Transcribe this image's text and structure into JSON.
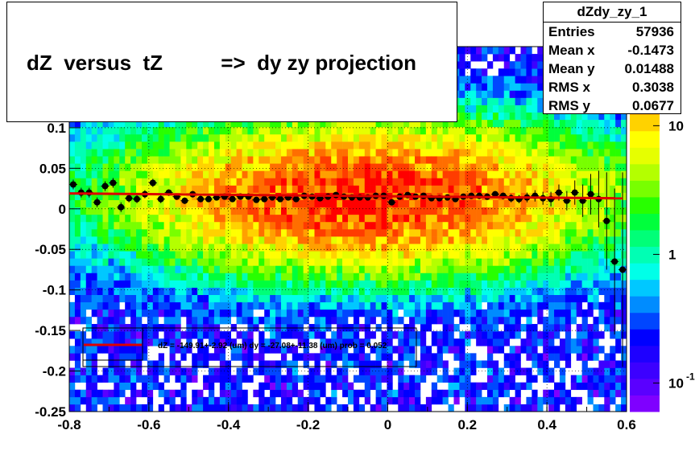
{
  "title": {
    "text": "dZ  versus  tZ          =>  dy zy projection"
  },
  "stats": {
    "name": "dZdy_zy_1",
    "rows": [
      {
        "label": "Entries",
        "value": "57936"
      },
      {
        "label": "Mean x",
        "value": "-0.1473"
      },
      {
        "label": "Mean y",
        "value": "0.01488"
      },
      {
        "label": "RMS x",
        "value": "0.3038"
      },
      {
        "label": "RMS y",
        "value": "0.0677"
      }
    ]
  },
  "legend": {
    "fit_text": "dZ = -149.91+-2.92 (um) dy = -27.08+-11.38 (um) prob = 0.052"
  },
  "colors": {
    "fit_line": "#dd0000",
    "points": "#000000",
    "palette": [
      "#7f00ff",
      "#5a00ff",
      "#3c00ff",
      "#1e00ff",
      "#0000ff",
      "#0046ff",
      "#008cff",
      "#00c8ff",
      "#00ffe8",
      "#00ffb4",
      "#00ff78",
      "#00ff3c",
      "#28ff00",
      "#78ff00",
      "#b4ff00",
      "#e6ff00",
      "#ffff00",
      "#ffd200",
      "#ffa000",
      "#ff6e00",
      "#ff3c00",
      "#ff0000"
    ]
  },
  "chart_data": {
    "type": "heatmap",
    "xlim": [
      -0.8,
      0.6
    ],
    "ylim": [
      -0.25,
      0.2
    ],
    "x_ticks": [
      "-0.8",
      "-0.6",
      "-0.4",
      "-0.2",
      "0",
      "0.2",
      "0.4",
      "0.6"
    ],
    "x_tick_values": [
      -0.8,
      -0.6,
      -0.4,
      -0.2,
      0,
      0.2,
      0.4,
      0.6
    ],
    "y_ticks": [
      "-0.25",
      "-0.2",
      "-0.15",
      "-0.1",
      "-0.05",
      "0",
      "0.05",
      "0.1"
    ],
    "y_tick_values": [
      -0.25,
      -0.2,
      -0.15,
      -0.1,
      -0.05,
      0,
      0.05,
      0.1
    ],
    "colorbar_ticks": [
      "10",
      "1"
    ],
    "colorbar_tick_values": [
      10,
      1
    ],
    "colorbar_ticks_exp": [
      {
        "base": "10",
        "exp": "-1",
        "value": 0.1
      }
    ],
    "colorbar_range": [
      0.06,
      40
    ],
    "grid": true,
    "profile": {
      "x": [
        -0.79,
        -0.77,
        -0.75,
        -0.73,
        -0.71,
        -0.69,
        -0.67,
        -0.65,
        -0.63,
        -0.61,
        -0.59,
        -0.57,
        -0.55,
        -0.53,
        -0.51,
        -0.49,
        -0.47,
        -0.45,
        -0.43,
        -0.41,
        -0.39,
        -0.37,
        -0.35,
        -0.33,
        -0.31,
        -0.29,
        -0.27,
        -0.25,
        -0.23,
        -0.21,
        -0.19,
        -0.17,
        -0.15,
        -0.13,
        -0.11,
        -0.09,
        -0.07,
        -0.05,
        -0.03,
        -0.01,
        0.01,
        0.03,
        0.05,
        0.07,
        0.09,
        0.11,
        0.13,
        0.15,
        0.17,
        0.19,
        0.21,
        0.23,
        0.25,
        0.27,
        0.29,
        0.31,
        0.33,
        0.35,
        0.37,
        0.39,
        0.41,
        0.43,
        0.45,
        0.47,
        0.49,
        0.51,
        0.53,
        0.55,
        0.57,
        0.59
      ],
      "y": [
        0.03,
        0.02,
        0.02,
        0.008,
        0.028,
        0.032,
        0.002,
        0.013,
        0.012,
        0.018,
        0.032,
        0.012,
        0.02,
        0.015,
        0.01,
        0.018,
        0.012,
        0.012,
        0.014,
        0.015,
        0.012,
        0.015,
        0.015,
        0.011,
        0.012,
        0.014,
        0.012,
        0.014,
        0.012,
        0.016,
        0.015,
        0.013,
        0.015,
        0.017,
        0.015,
        0.014,
        0.014,
        0.014,
        0.016,
        0.016,
        0.008,
        0.015,
        0.017,
        0.015,
        0.016,
        0.013,
        0.013,
        0.014,
        0.012,
        0.015,
        0.016,
        0.016,
        0.015,
        0.018,
        0.016,
        0.013,
        0.012,
        0.014,
        0.016,
        0.013,
        0.012,
        0.02,
        0.01,
        0.02,
        0.01,
        0.018,
        0.012,
        -0.015,
        -0.065,
        -0.075
      ],
      "err": [
        0.006,
        0.006,
        0.006,
        0.006,
        0.006,
        0.006,
        0.006,
        0.005,
        0.005,
        0.005,
        0.005,
        0.005,
        0.004,
        0.004,
        0.004,
        0.004,
        0.004,
        0.003,
        0.003,
        0.003,
        0.003,
        0.003,
        0.003,
        0.003,
        0.003,
        0.003,
        0.003,
        0.003,
        0.003,
        0.003,
        0.003,
        0.003,
        0.003,
        0.003,
        0.003,
        0.003,
        0.003,
        0.003,
        0.003,
        0.003,
        0.003,
        0.003,
        0.003,
        0.003,
        0.003,
        0.003,
        0.003,
        0.003,
        0.003,
        0.003,
        0.003,
        0.004,
        0.004,
        0.004,
        0.004,
        0.005,
        0.005,
        0.006,
        0.007,
        0.008,
        0.009,
        0.01,
        0.012,
        0.015,
        0.02,
        0.025,
        0.035,
        0.06,
        0.09,
        0.12
      ]
    },
    "fit_line": {
      "x": [
        -0.8,
        0.59
      ],
      "y": [
        0.019,
        0.013
      ]
    },
    "density_model": {
      "center_x": -0.05,
      "center_y": 0.015,
      "sigma_x": 0.3,
      "sigma_y": 0.045,
      "peak": 30,
      "floor": 0.25
    }
  }
}
